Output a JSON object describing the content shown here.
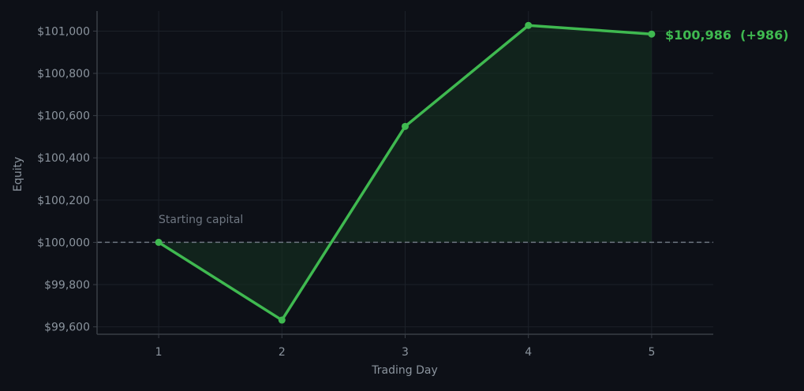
{
  "chart_data": {
    "type": "line",
    "x": [
      1,
      2,
      3,
      4,
      5
    ],
    "series": [
      {
        "values": [
          100000,
          99632,
          100549,
          101027,
          100986
        ]
      }
    ],
    "xlabel": "Trading Day",
    "ylabel": "Equity",
    "xlim": [
      0.5,
      5.5
    ],
    "ylim": [
      99565,
      101095
    ],
    "x_ticks": [
      1,
      2,
      3,
      4,
      5
    ],
    "y_ticks": [
      99600,
      99800,
      100000,
      100200,
      100400,
      100600,
      100800,
      101000
    ],
    "y_tick_labels": [
      "$99,600",
      "$99,800",
      "$100,000",
      "$100,200",
      "$100,400",
      "$100,600",
      "$100,800",
      "$101,000"
    ],
    "grid": true,
    "reference_line": {
      "value": 100000,
      "label": "Starting capital"
    },
    "end_label": "$100,986  (+986)",
    "colors": {
      "background": "#0d1017",
      "line": "#3fb950",
      "fill": "#143020",
      "grid": "#1c2129",
      "axis": "#3a3f47",
      "tick_text": "#8b949e",
      "reference": "#6e7681"
    }
  }
}
